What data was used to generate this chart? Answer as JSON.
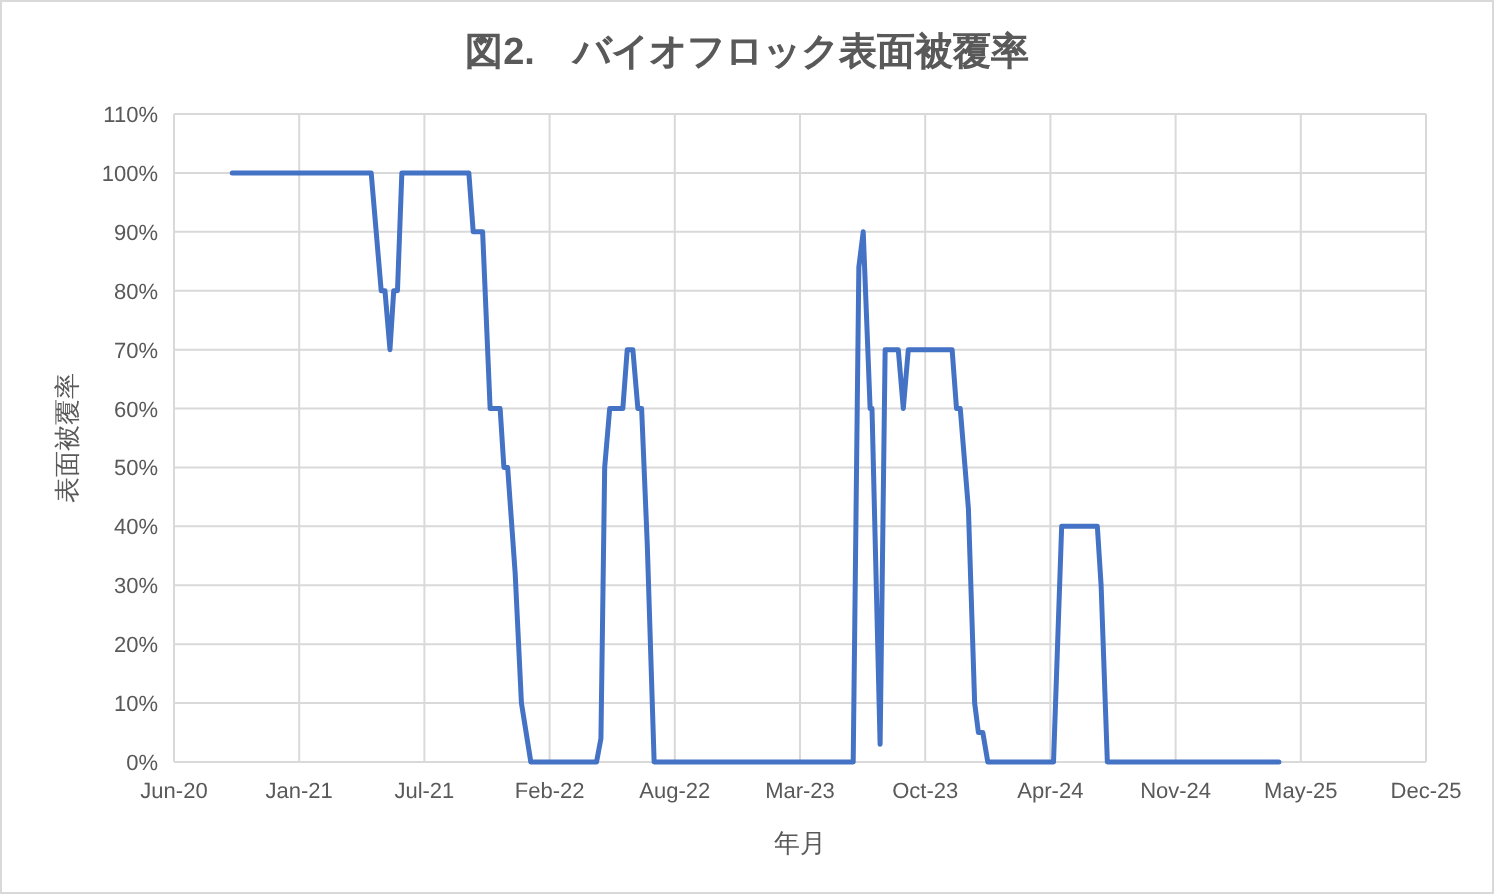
{
  "chart_data": {
    "type": "line",
    "title": "図2.　バイオフロック表面被覆率",
    "xlabel": "年月",
    "ylabel": "表面被覆率",
    "x": [
      "2020-09-21",
      "2021-05-01",
      "2021-05-17",
      "2021-05-23",
      "2021-05-31",
      "2021-06-06",
      "2021-06-12",
      "2021-06-19",
      "2021-10-04",
      "2021-10-11",
      "2021-10-26",
      "2021-11-07",
      "2021-11-23",
      "2021-11-29",
      "2021-12-05",
      "2021-12-17",
      "2021-12-27",
      "2022-01-11",
      "2022-04-26",
      "2022-05-03",
      "2022-05-09",
      "2022-05-17",
      "2022-06-07",
      "2022-06-14",
      "2022-06-23",
      "2022-07-01",
      "2022-07-07",
      "2022-07-16",
      "2022-07-27",
      "2023-06-10",
      "2023-06-19",
      "2023-06-26",
      "2023-07-07",
      "2023-07-10",
      "2023-07-23",
      "2023-07-31",
      "2023-08-21",
      "2023-08-29",
      "2023-09-06",
      "2023-11-15",
      "2023-11-22",
      "2023-11-28",
      "2023-12-11",
      "2023-12-21",
      "2023-12-27",
      "2024-01-03",
      "2024-01-11",
      "2024-04-25",
      "2024-05-08",
      "2024-07-04",
      "2024-07-10",
      "2024-07-20",
      "2025-04-20"
    ],
    "series": [
      {
        "color": "#4472c4",
        "values": [
          100,
          100,
          80,
          80,
          70,
          80,
          80,
          100,
          100,
          90,
          90,
          60,
          60,
          50,
          50,
          32,
          10,
          0,
          0,
          4,
          50,
          60,
          60,
          70,
          70,
          60,
          60,
          37,
          0,
          0,
          84,
          90,
          60,
          60,
          3,
          70,
          70,
          60,
          70,
          70,
          60,
          60,
          43,
          10,
          5,
          5,
          0,
          0,
          40,
          40,
          30,
          0,
          0
        ]
      }
    ],
    "xlim": [
      "2020-06-20",
      "2025-12-11"
    ],
    "xticks": [
      {
        "value": "2020-06-20",
        "label": "Jun-20"
      },
      {
        "value": "2021-01-06",
        "label": "Jan-21"
      },
      {
        "value": "2021-07-25",
        "label": "Jul-21"
      },
      {
        "value": "2022-02-10",
        "label": "Feb-22"
      },
      {
        "value": "2022-08-29",
        "label": "Aug-22"
      },
      {
        "value": "2023-03-17",
        "label": "Mar-23"
      },
      {
        "value": "2023-10-03",
        "label": "Oct-23"
      },
      {
        "value": "2024-04-20",
        "label": "Apr-24"
      },
      {
        "value": "2024-11-06",
        "label": "Nov-24"
      },
      {
        "value": "2025-05-25",
        "label": "May-25"
      },
      {
        "value": "2025-12-11",
        "label": "Dec-25"
      }
    ],
    "ylim": [
      0,
      110
    ],
    "yticks": [
      {
        "value": 0,
        "label": "0%"
      },
      {
        "value": 10,
        "label": "10%"
      },
      {
        "value": 20,
        "label": "20%"
      },
      {
        "value": 30,
        "label": "30%"
      },
      {
        "value": 40,
        "label": "40%"
      },
      {
        "value": 50,
        "label": "50%"
      },
      {
        "value": 60,
        "label": "60%"
      },
      {
        "value": 70,
        "label": "70%"
      },
      {
        "value": 80,
        "label": "80%"
      },
      {
        "value": 90,
        "label": "90%"
      },
      {
        "value": 100,
        "label": "100%"
      },
      {
        "value": 110,
        "label": "110%"
      }
    ],
    "grid": true,
    "marker": "none",
    "line_style": "solid"
  }
}
